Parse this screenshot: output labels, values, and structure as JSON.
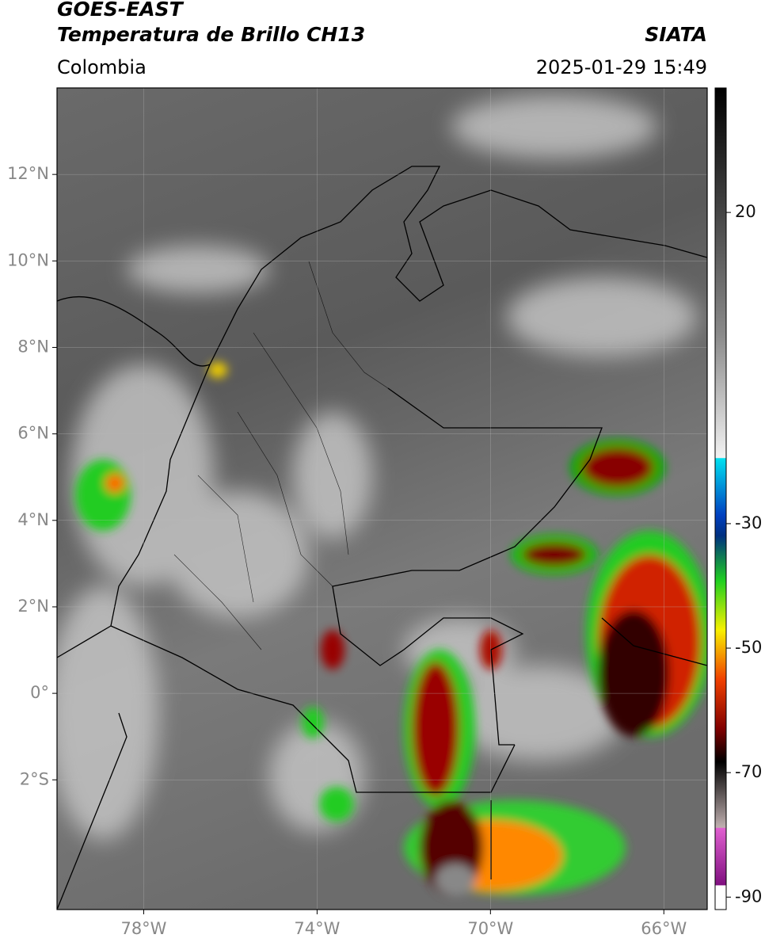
{
  "header": {
    "title": "GOES-EAST",
    "subtitle": "Temperatura de Brillo CH13",
    "source": "SIATA",
    "region": "Colombia",
    "datetime": "2025-01-29 15:49"
  },
  "map": {
    "xlim": [
      -80,
      -65
    ],
    "ylim": [
      -5,
      14
    ],
    "xticks": [
      {
        "value": -78,
        "label": "78°W"
      },
      {
        "value": -74,
        "label": "74°W"
      },
      {
        "value": -70,
        "label": "70°W"
      },
      {
        "value": -66,
        "label": "66°W"
      }
    ],
    "yticks": [
      {
        "value": 12,
        "label": "12°N"
      },
      {
        "value": 10,
        "label": "10°N"
      },
      {
        "value": 8,
        "label": "8°N"
      },
      {
        "value": 6,
        "label": "6°N"
      },
      {
        "value": 4,
        "label": "4°N"
      },
      {
        "value": 2,
        "label": "2°N"
      },
      {
        "value": 0,
        "label": "0°"
      },
      {
        "value": -2,
        "label": "2°S"
      }
    ],
    "grid": true
  },
  "colorbar": {
    "lim": [
      -92,
      40
    ],
    "ticks": [
      20,
      -30,
      -50,
      -70,
      -90
    ]
  }
}
